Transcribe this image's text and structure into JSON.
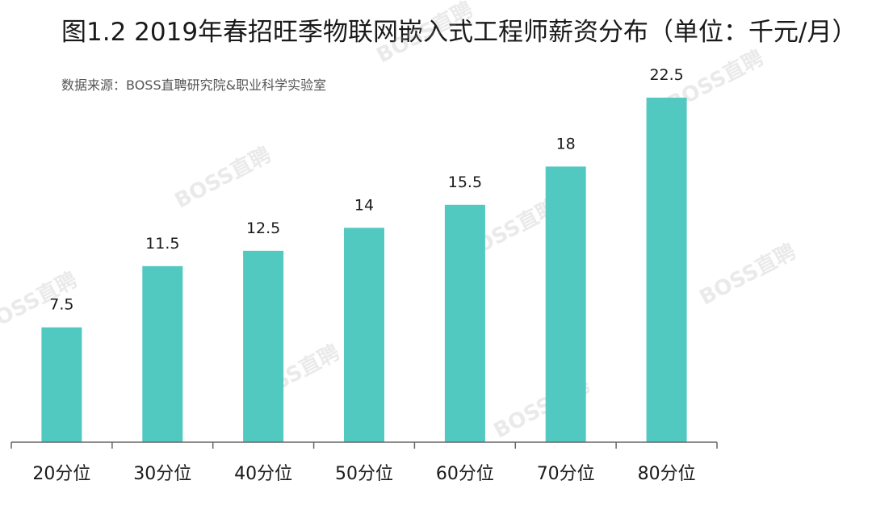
{
  "title": "图1.2  2019年春招旺季物联网嵌入式工程师薪资分布（单位：千元/月）",
  "source": "数据来源：BOSS直聘研究院&职业科学实验室",
  "watermark_text": "BOSS直聘",
  "colors": {
    "bar": "#52c9c0",
    "axis": "#666666",
    "label": "#1a1a1a"
  },
  "chart_data": {
    "type": "bar",
    "title": "图1.2  2019年春招旺季物联网嵌入式工程师薪资分布（单位：千元/月）",
    "categories": [
      "20分位",
      "30分位",
      "40分位",
      "50分位",
      "60分位",
      "70分位",
      "80分位"
    ],
    "values": [
      7.5,
      11.5,
      12.5,
      14,
      15.5,
      18,
      22.5
    ],
    "value_labels": [
      "7.5",
      "11.5",
      "12.5",
      "14",
      "15.5",
      "18",
      "22.5"
    ],
    "xlabel": "",
    "ylabel": "",
    "ylim": [
      0,
      22.5
    ],
    "grid": false,
    "legend": "none"
  }
}
